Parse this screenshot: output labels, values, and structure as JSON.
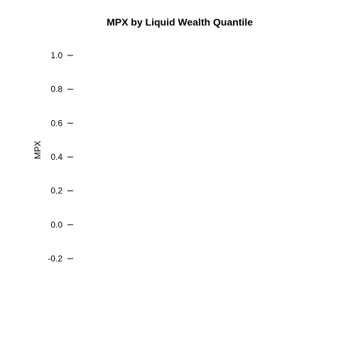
{
  "chart_data": {
    "type": "line",
    "title": "MPX by Liquid Wealth Quantile",
    "xlabel": "",
    "ylabel": "MPX",
    "ylim": [
      -0.2,
      1.0
    ],
    "y_ticks": [
      "-0.2",
      "0.0",
      "0.2",
      "0.4",
      "0.6",
      "0.8",
      "1.0"
    ],
    "series": [],
    "grid": false,
    "legend": "none"
  }
}
